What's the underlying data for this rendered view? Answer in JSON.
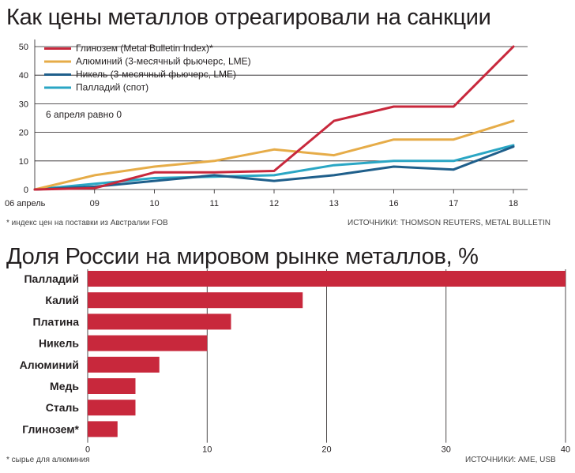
{
  "chart_data": [
    {
      "type": "line",
      "title": "Как цены металлов отреагировали на санкции",
      "x": [
        "06 апрель",
        "09",
        "10",
        "11",
        "12",
        "13",
        "16",
        "17",
        "18"
      ],
      "ylim": [
        0,
        50
      ],
      "yticks": [
        0,
        10,
        20,
        30,
        40,
        50
      ],
      "annotation": "6 апреля равно 0",
      "footnote": "* индекс цен на поставки из Австралии FOB",
      "source": "ИСТОЧНИКИ: THOMSON REUTERS, METAL BULLETIN",
      "legend_position": "top-left",
      "series": [
        {
          "name": "Глинозем (Metal Bulletin Index)*",
          "color": "#c8283c",
          "values": [
            0,
            0.5,
            6,
            6,
            6.5,
            24,
            29,
            29,
            50
          ]
        },
        {
          "name": "Алюминий (3-месячный фьючерс, LME)",
          "color": "#e6ac48",
          "values": [
            0,
            5,
            8,
            10,
            14,
            12,
            17.5,
            17.5,
            24
          ]
        },
        {
          "name": "Никель (3-месячный фьючерс, LME)",
          "color": "#1f5f8b",
          "values": [
            0,
            1,
            3,
            5,
            3,
            5,
            8,
            7,
            15
          ]
        },
        {
          "name": "Палладий (спот)",
          "color": "#2aa6c4",
          "values": [
            0,
            2,
            4,
            4.5,
            5,
            8.5,
            10,
            10,
            15.5
          ]
        }
      ]
    },
    {
      "type": "bar",
      "orientation": "horizontal",
      "title": "Доля России на мировом рынке металлов, %",
      "categories": [
        "Палладий",
        "Калий",
        "Платина",
        "Никель",
        "Алюминий",
        "Медь",
        "Сталь",
        "Глинозем*"
      ],
      "values": [
        40,
        18,
        12,
        10,
        6,
        4,
        4,
        2.5
      ],
      "xlim": [
        0,
        40
      ],
      "xticks": [
        0,
        10,
        20,
        30,
        40
      ],
      "color": "#c8283c",
      "footnote": "* сырье для алюминия",
      "source": "ИСТОЧНИКИ: AME, USB"
    }
  ]
}
